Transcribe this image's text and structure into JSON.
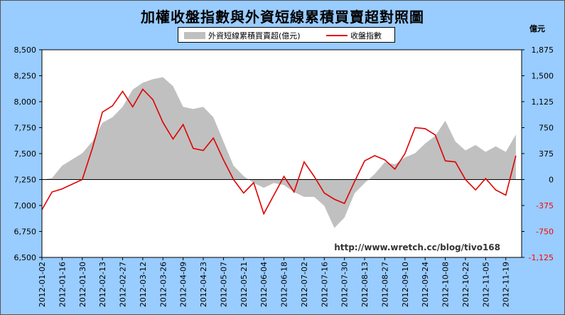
{
  "chart_data": {
    "type": "area",
    "title": "加權收盤指數與外資短線累積買賣超對照圖",
    "right_axis_unit": "億元",
    "watermark": "http://www.wretch.cc/blog/tivo168",
    "legend": [
      {
        "name": "外資短線累積買賣超(億元)",
        "color": "#c0c0c0",
        "kind": "area"
      },
      {
        "name": "收盤指數",
        "color": "#e00000",
        "kind": "line"
      }
    ],
    "left_axis": {
      "min": 6500,
      "max": 8500,
      "ticks": [
        6500,
        6750,
        7000,
        7250,
        7500,
        7750,
        8000,
        8250,
        8500
      ],
      "tick_labels": [
        "6,500",
        "6,750",
        "7,000",
        "7,250",
        "7,500",
        "7,750",
        "8,000",
        "8,250",
        "8,500"
      ]
    },
    "right_axis": {
      "min": -1125,
      "max": 1875,
      "ticks": [
        1875,
        1500,
        1125,
        750,
        375,
        0,
        -375,
        -750,
        -1125
      ],
      "tick_labels": [
        "1,875",
        "1,500",
        "1,125",
        "750",
        "375",
        "0",
        "-375",
        "-750",
        "-1,125"
      ],
      "negative_color": "#ff0000"
    },
    "x_tick_labels": [
      "2012-01-02",
      "2012-01-16",
      "2012-01-30",
      "2012-02-13",
      "2012-02-27",
      "2012-03-12",
      "2012-03-26",
      "2012-04-09",
      "2012-04-23",
      "2012-05-07",
      "2012-05-21",
      "2012-06-04",
      "2012-06-18",
      "2012-07-02",
      "2012-07-16",
      "2012-07-30",
      "2012-08-13",
      "2012-08-27",
      "2012-09-10",
      "2012-09-24",
      "2012-10-08",
      "2012-10-22",
      "2012-11-05",
      "2012-11-19"
    ],
    "series": [
      {
        "name": "外资短線累積買賣超(億元)",
        "axis": "right",
        "dates": [
          "2012-01-02",
          "2012-01-09",
          "2012-01-16",
          "2012-01-30",
          "2012-02-06",
          "2012-02-13",
          "2012-02-20",
          "2012-02-27",
          "2012-03-05",
          "2012-03-12",
          "2012-03-19",
          "2012-03-26",
          "2012-04-02",
          "2012-04-09",
          "2012-04-16",
          "2012-04-23",
          "2012-04-30",
          "2012-05-07",
          "2012-05-14",
          "2012-05-21",
          "2012-05-28",
          "2012-06-04",
          "2012-06-11",
          "2012-06-18",
          "2012-06-25",
          "2012-07-02",
          "2012-07-09",
          "2012-07-16",
          "2012-07-23",
          "2012-07-30",
          "2012-08-06",
          "2012-08-13",
          "2012-08-20",
          "2012-08-27",
          "2012-09-03",
          "2012-09-10",
          "2012-09-17",
          "2012-09-24",
          "2012-10-01",
          "2012-10-08",
          "2012-10-15",
          "2012-10-22",
          "2012-10-29",
          "2012-11-05",
          "2012-11-12",
          "2012-11-19",
          "2012-11-26"
        ],
        "values": [
          0,
          20,
          200,
          380,
          550,
          820,
          900,
          1050,
          1300,
          1400,
          1450,
          1480,
          1350,
          1050,
          1020,
          1050,
          900,
          550,
          200,
          50,
          -50,
          -120,
          -50,
          -80,
          -180,
          -250,
          -250,
          -380,
          -700,
          -550,
          -200,
          -50,
          80,
          250,
          220,
          320,
          380,
          520,
          630,
          850,
          550,
          420,
          500,
          400,
          480,
          400,
          650
        ]
      },
      {
        "name": "收盤指數",
        "axis": "left",
        "dates": [
          "2012-01-02",
          "2012-01-09",
          "2012-01-16",
          "2012-01-30",
          "2012-02-06",
          "2012-02-13",
          "2012-02-20",
          "2012-02-27",
          "2012-03-05",
          "2012-03-12",
          "2012-03-19",
          "2012-03-26",
          "2012-04-02",
          "2012-04-09",
          "2012-04-16",
          "2012-04-23",
          "2012-04-30",
          "2012-05-07",
          "2012-05-14",
          "2012-05-21",
          "2012-05-28",
          "2012-06-04",
          "2012-06-11",
          "2012-06-18",
          "2012-06-25",
          "2012-07-02",
          "2012-07-09",
          "2012-07-16",
          "2012-07-23",
          "2012-07-30",
          "2012-08-06",
          "2012-08-13",
          "2012-08-20",
          "2012-08-27",
          "2012-09-03",
          "2012-09-10",
          "2012-09-17",
          "2012-09-24",
          "2012-10-01",
          "2012-10-08",
          "2012-10-15",
          "2012-10-22",
          "2012-10-29",
          "2012-11-05",
          "2012-11-12",
          "2012-11-19",
          "2012-11-26"
        ],
        "values": [
          6960,
          7130,
          7160,
          7250,
          7550,
          7900,
          7960,
          8100,
          7950,
          8120,
          8020,
          7800,
          7640,
          7780,
          7550,
          7530,
          7650,
          7440,
          7250,
          7120,
          7220,
          6920,
          7100,
          7280,
          7130,
          7420,
          7280,
          7120,
          7060,
          7020,
          7230,
          7430,
          7480,
          7440,
          7350,
          7500,
          7750,
          7740,
          7680,
          7430,
          7420,
          7250,
          7150,
          7260,
          7150,
          7100,
          7480
        ]
      }
    ]
  }
}
